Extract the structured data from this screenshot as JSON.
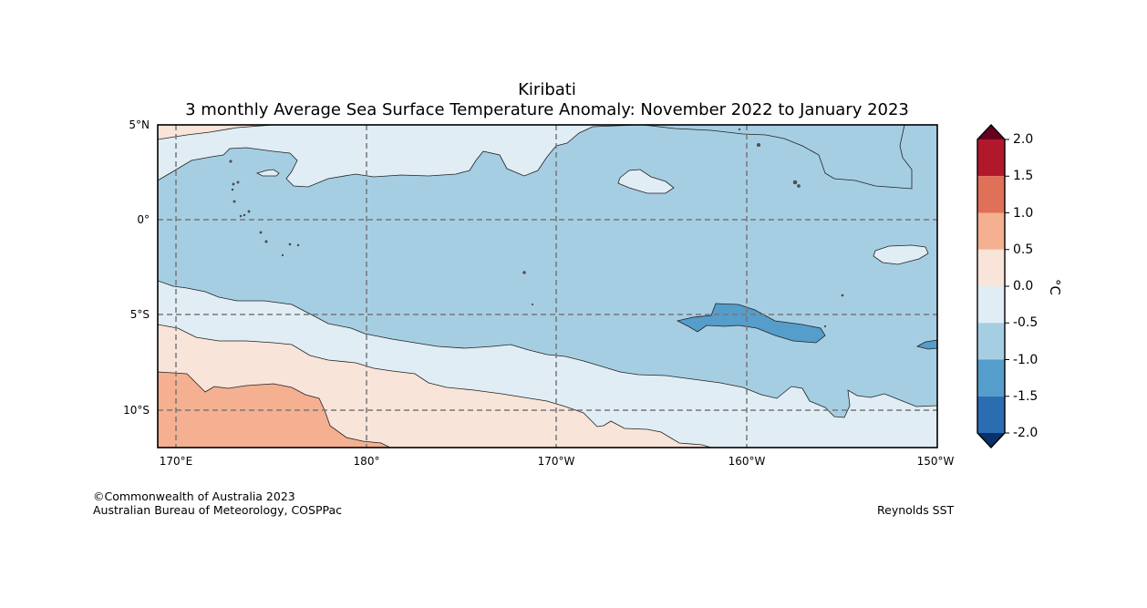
{
  "title": {
    "line1": "Kiribati",
    "line2": "3 monthly Average Sea Surface Temperature Anomaly: November 2022 to January 2023"
  },
  "map": {
    "lat_ticks": [
      "5°N",
      "0°",
      "5°S",
      "10°S"
    ],
    "lon_ticks": [
      "170°E",
      "180°",
      "170°W",
      "160°W",
      "150°W"
    ]
  },
  "colorbar": {
    "unit_label": "°C",
    "ticks": [
      "2.0",
      "1.5",
      "1.0",
      "0.5",
      "0.0",
      "-0.5",
      "-1.0",
      "-1.5",
      "-2.0"
    ],
    "colors": {
      "over": "#67001f",
      "1.5_2.0": "#b2182b",
      "1.0_1.5": "#e07058",
      "0.5_1.0": "#f4b090",
      "0.0_0.5": "#f9e4da",
      "-0.5_0.0": "#e0edf4",
      "-1.0_-0.5": "#a6cee3",
      "-1.5_-1.0": "#559dca",
      "-2.0_-1.5": "#2a6db1",
      "under": "#08306b"
    }
  },
  "footer": {
    "copyright": "©Commonwealth of Australia 2023",
    "agency": "Australian Bureau of Meteorology, COSPPac",
    "source": "Reynolds SST"
  }
}
